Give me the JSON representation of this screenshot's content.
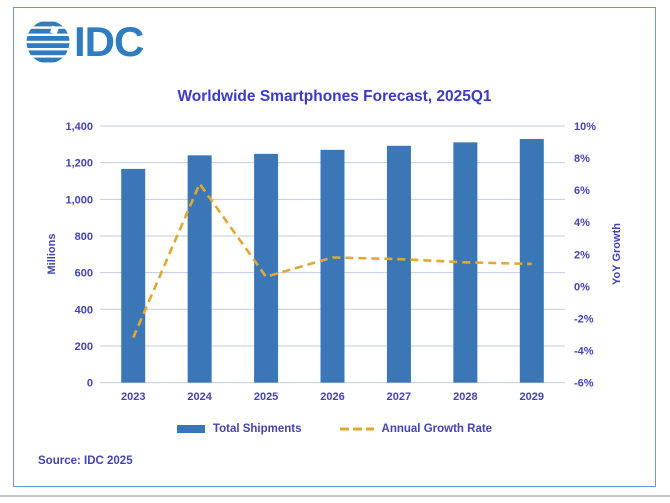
{
  "logo": {
    "text": "IDC"
  },
  "title": "Worldwide Smartphones Forecast, 2025Q1",
  "source": "Source: IDC 2025",
  "colors": {
    "bar": "#3b77b7",
    "line": "#e0a933",
    "grid": "#c5c9e6",
    "text_indigo": "#4343b5",
    "title_blue": "#3b3ac9",
    "logo_blue": "#2f7cc0",
    "card_border": "#7096cc"
  },
  "chart_data": {
    "type": "combo",
    "title": "Worldwide Smartphones Forecast, 2025Q1",
    "categories": [
      "2023",
      "2024",
      "2025",
      "2026",
      "2027",
      "2028",
      "2029"
    ],
    "series": [
      {
        "name": "Total Shipments",
        "type": "bar",
        "axis": "left",
        "color": "#3b77b7",
        "values": [
          1166,
          1240,
          1248,
          1270,
          1292,
          1311,
          1329
        ]
      },
      {
        "name": "Annual Growth Rate",
        "type": "line",
        "style": "dashed",
        "axis": "right",
        "color": "#e0a933",
        "values": [
          -3.2,
          6.4,
          0.6,
          1.8,
          1.7,
          1.5,
          1.4
        ]
      }
    ],
    "left_axis": {
      "label": "Millions",
      "min": 0,
      "max": 1400,
      "step": 200,
      "tick_labels": [
        "0",
        "200",
        "400",
        "600",
        "800",
        "1,000",
        "1,200",
        "1,400"
      ]
    },
    "right_axis": {
      "label": "YoY Growth",
      "min": -6,
      "max": 10,
      "step": 2,
      "tick_labels": [
        "-6%",
        "-4%",
        "-2%",
        "0%",
        "2%",
        "4%",
        "6%",
        "8%",
        "10%"
      ]
    },
    "grid": true,
    "legend_position": "bottom",
    "legend": [
      "Total Shipments",
      "Annual Growth Rate"
    ]
  }
}
